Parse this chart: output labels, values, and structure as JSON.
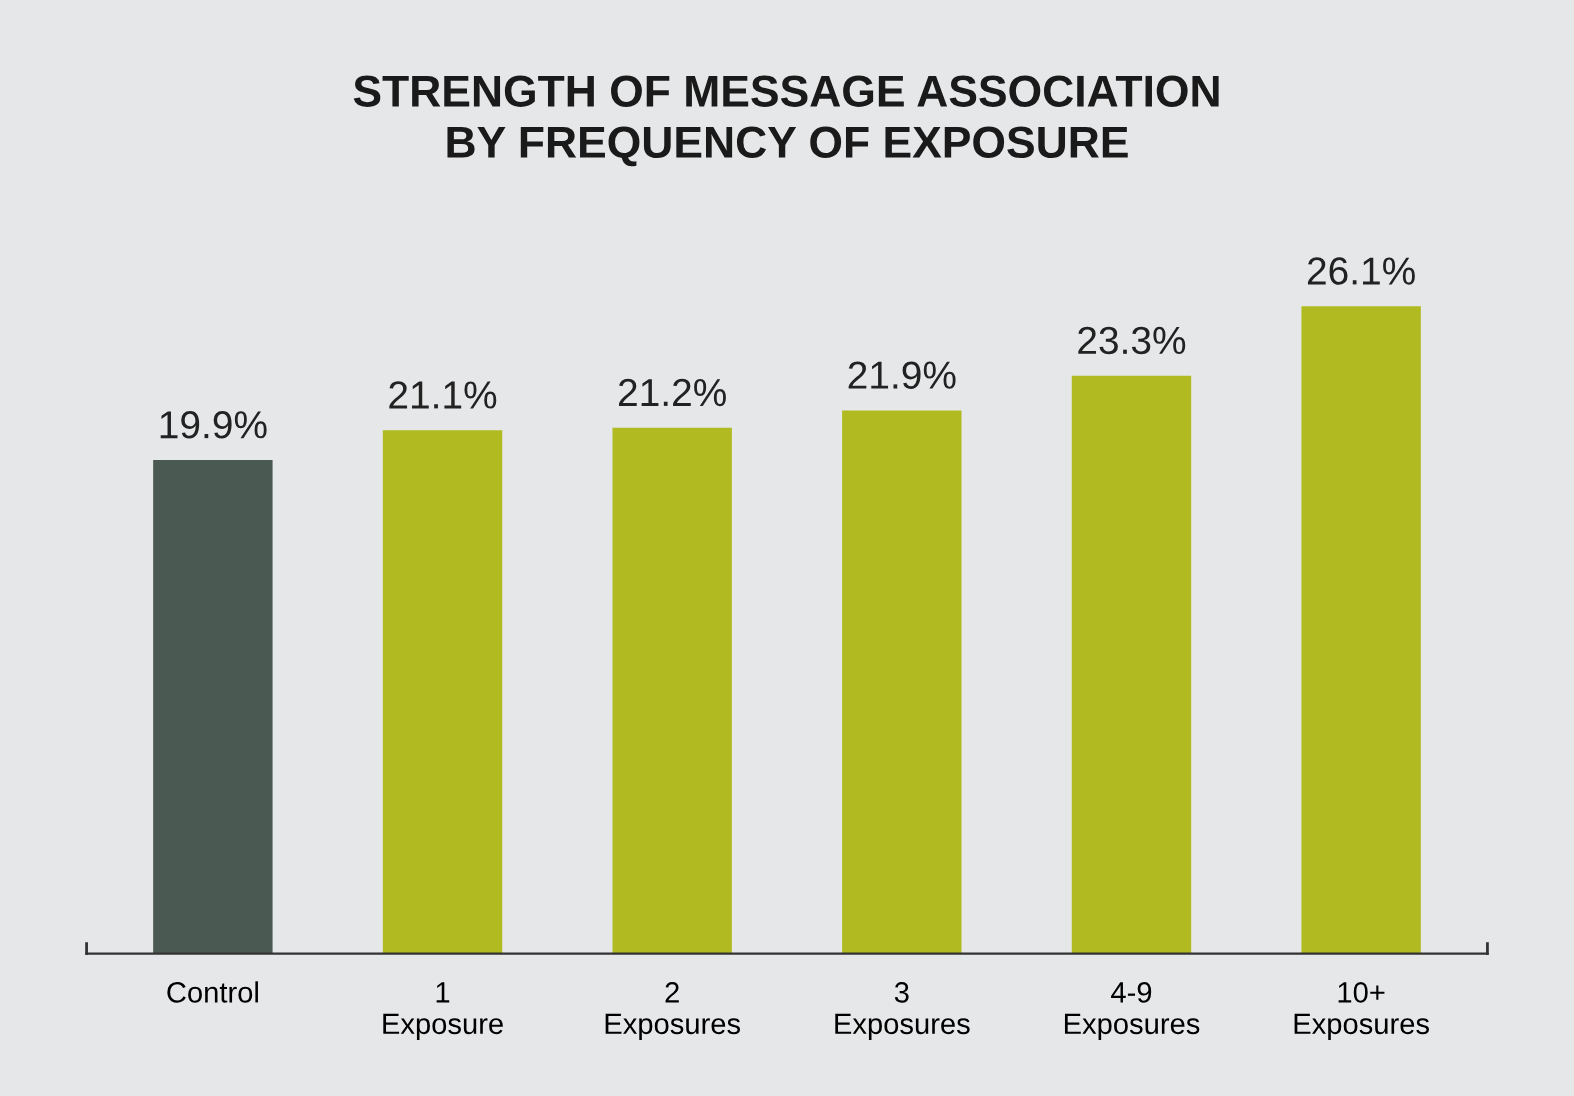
{
  "chart_data": {
    "type": "bar",
    "title": "STRENGTH OF MESSAGE ASSOCIATION\nBY FREQUENCY OF EXPOSURE",
    "categories": [
      "Control",
      "1\nExposure",
      "2\nExposures",
      "3\nExposures",
      "4-9\nExposures",
      "10+\nExposures"
    ],
    "values": [
      19.9,
      21.1,
      21.2,
      21.9,
      23.3,
      26.1
    ],
    "colors": [
      "#4a5a52",
      "#b1bb21",
      "#b1bb21",
      "#b1bb21",
      "#b1bb21",
      "#b1bb21"
    ],
    "value_labels": [
      "19.9%",
      "21.1%",
      "21.2%",
      "21.9%",
      "23.3%",
      "26.1%"
    ],
    "tick_labels": "x",
    "grid": false,
    "legend": false
  }
}
